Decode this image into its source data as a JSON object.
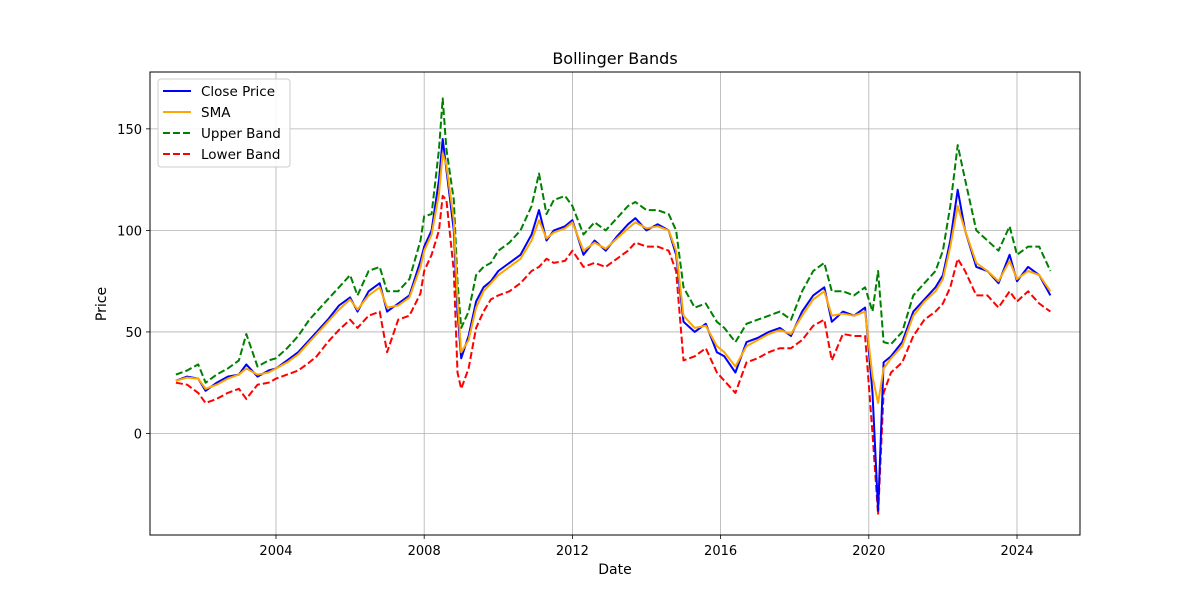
{
  "chart_data": {
    "type": "line",
    "title": "Bollinger Bands",
    "xlabel": "Date",
    "ylabel": "Price",
    "xlim": [
      2000.6,
      2025.7
    ],
    "ylim": [
      -50,
      178
    ],
    "x_ticks": [
      2004,
      2008,
      2012,
      2016,
      2020,
      2024
    ],
    "x_tick_labels": [
      "2004",
      "2008",
      "2012",
      "2016",
      "2020",
      "2024"
    ],
    "y_ticks": [
      0,
      50,
      100,
      150
    ],
    "y_tick_labels": [
      "0",
      "50",
      "100",
      "150"
    ],
    "grid": true,
    "legend_position": "top-left",
    "x": [
      2001.3,
      2001.6,
      2001.9,
      2002.1,
      2002.4,
      2002.7,
      2003.0,
      2003.2,
      2003.5,
      2003.8,
      2004.0,
      2004.3,
      2004.6,
      2004.9,
      2005.1,
      2005.4,
      2005.7,
      2006.0,
      2006.2,
      2006.5,
      2006.8,
      2007.0,
      2007.3,
      2007.6,
      2007.9,
      2008.0,
      2008.2,
      2008.4,
      2008.5,
      2008.6,
      2008.8,
      2008.9,
      2009.0,
      2009.2,
      2009.4,
      2009.6,
      2009.8,
      2010.0,
      2010.3,
      2010.6,
      2010.9,
      2011.1,
      2011.3,
      2011.5,
      2011.8,
      2012.0,
      2012.3,
      2012.6,
      2012.9,
      2013.2,
      2013.5,
      2013.7,
      2014.0,
      2014.3,
      2014.6,
      2014.8,
      2015.0,
      2015.3,
      2015.6,
      2015.9,
      2016.1,
      2016.4,
      2016.7,
      2017.0,
      2017.3,
      2017.6,
      2017.9,
      2018.2,
      2018.5,
      2018.8,
      2019.0,
      2019.3,
      2019.6,
      2019.9,
      2020.1,
      2020.25,
      2020.4,
      2020.6,
      2020.9,
      2021.2,
      2021.5,
      2021.8,
      2022.0,
      2022.2,
      2022.4,
      2022.6,
      2022.9,
      2023.2,
      2023.5,
      2023.8,
      2024.0,
      2024.3,
      2024.6,
      2024.9
    ],
    "series": [
      {
        "name": "Close Price",
        "color": "#0000ff",
        "dash": "solid",
        "values": [
          26,
          28,
          27,
          21,
          25,
          28,
          29,
          34,
          28,
          31,
          32,
          36,
          40,
          46,
          50,
          56,
          63,
          67,
          60,
          70,
          74,
          60,
          64,
          68,
          85,
          92,
          100,
          125,
          145,
          130,
          100,
          60,
          37,
          48,
          65,
          72,
          75,
          80,
          84,
          88,
          98,
          110,
          95,
          100,
          102,
          105,
          88,
          95,
          90,
          97,
          103,
          106,
          100,
          103,
          100,
          88,
          55,
          50,
          54,
          40,
          38,
          30,
          45,
          47,
          50,
          52,
          48,
          60,
          68,
          72,
          55,
          60,
          58,
          62,
          20,
          -38,
          35,
          38,
          45,
          60,
          66,
          72,
          78,
          95,
          120,
          100,
          82,
          80,
          74,
          88,
          75,
          82,
          78,
          68
        ]
      },
      {
        "name": "SMA",
        "color": "#ffa500",
        "dash": "solid",
        "values": [
          26,
          27.5,
          27,
          22,
          24,
          27,
          29,
          32,
          29,
          30,
          32,
          35,
          39,
          45,
          49,
          55,
          61,
          66,
          61,
          68,
          72,
          62,
          63,
          67,
          82,
          90,
          98,
          118,
          138,
          132,
          105,
          66,
          40,
          46,
          62,
          70,
          74,
          78,
          82,
          86,
          95,
          105,
          96,
          99,
          101,
          104,
          90,
          94,
          91,
          96,
          101,
          104,
          101,
          102,
          100,
          90,
          58,
          52,
          53,
          43,
          40,
          33,
          43,
          46,
          49,
          51,
          49,
          58,
          66,
          70,
          58,
          59,
          58,
          60,
          28,
          15,
          32,
          37,
          43,
          58,
          65,
          70,
          76,
          92,
          112,
          100,
          84,
          80,
          75,
          85,
          76,
          80,
          78,
          70
        ]
      },
      {
        "name": "Upper Band",
        "color": "#008000",
        "dash": "dashed",
        "values": [
          29,
          31,
          34,
          25,
          29,
          32,
          36,
          49,
          33,
          36,
          37,
          42,
          48,
          56,
          60,
          66,
          72,
          78,
          68,
          80,
          82,
          70,
          70,
          76,
          95,
          107,
          108,
          140,
          165,
          140,
          115,
          75,
          52,
          60,
          78,
          82,
          84,
          90,
          94,
          100,
          112,
          128,
          108,
          115,
          117,
          112,
          98,
          104,
          100,
          106,
          112,
          114,
          110,
          110,
          108,
          100,
          72,
          62,
          64,
          55,
          52,
          45,
          54,
          56,
          58,
          60,
          56,
          70,
          80,
          84,
          70,
          70,
          68,
          72,
          60,
          80,
          45,
          44,
          50,
          68,
          74,
          80,
          90,
          112,
          142,
          125,
          100,
          95,
          90,
          102,
          88,
          92,
          92,
          80
        ]
      },
      {
        "name": "Lower Band",
        "color": "#ff0000",
        "dash": "dashed",
        "values": [
          25,
          24,
          20,
          15,
          17,
          20,
          22,
          17,
          24,
          25,
          27,
          29,
          31,
          35,
          38,
          45,
          51,
          56,
          52,
          58,
          60,
          40,
          56,
          58,
          69,
          80,
          88,
          100,
          117,
          115,
          80,
          30,
          22,
          32,
          52,
          60,
          66,
          68,
          70,
          74,
          80,
          82,
          86,
          84,
          85,
          90,
          82,
          84,
          82,
          86,
          90,
          94,
          92,
          92,
          90,
          80,
          36,
          38,
          42,
          30,
          26,
          20,
          35,
          37,
          40,
          42,
          42,
          46,
          53,
          56,
          36,
          49,
          48,
          48,
          0,
          -40,
          20,
          30,
          35,
          48,
          56,
          60,
          64,
          72,
          86,
          80,
          68,
          68,
          62,
          70,
          65,
          70,
          64,
          60
        ]
      }
    ]
  }
}
